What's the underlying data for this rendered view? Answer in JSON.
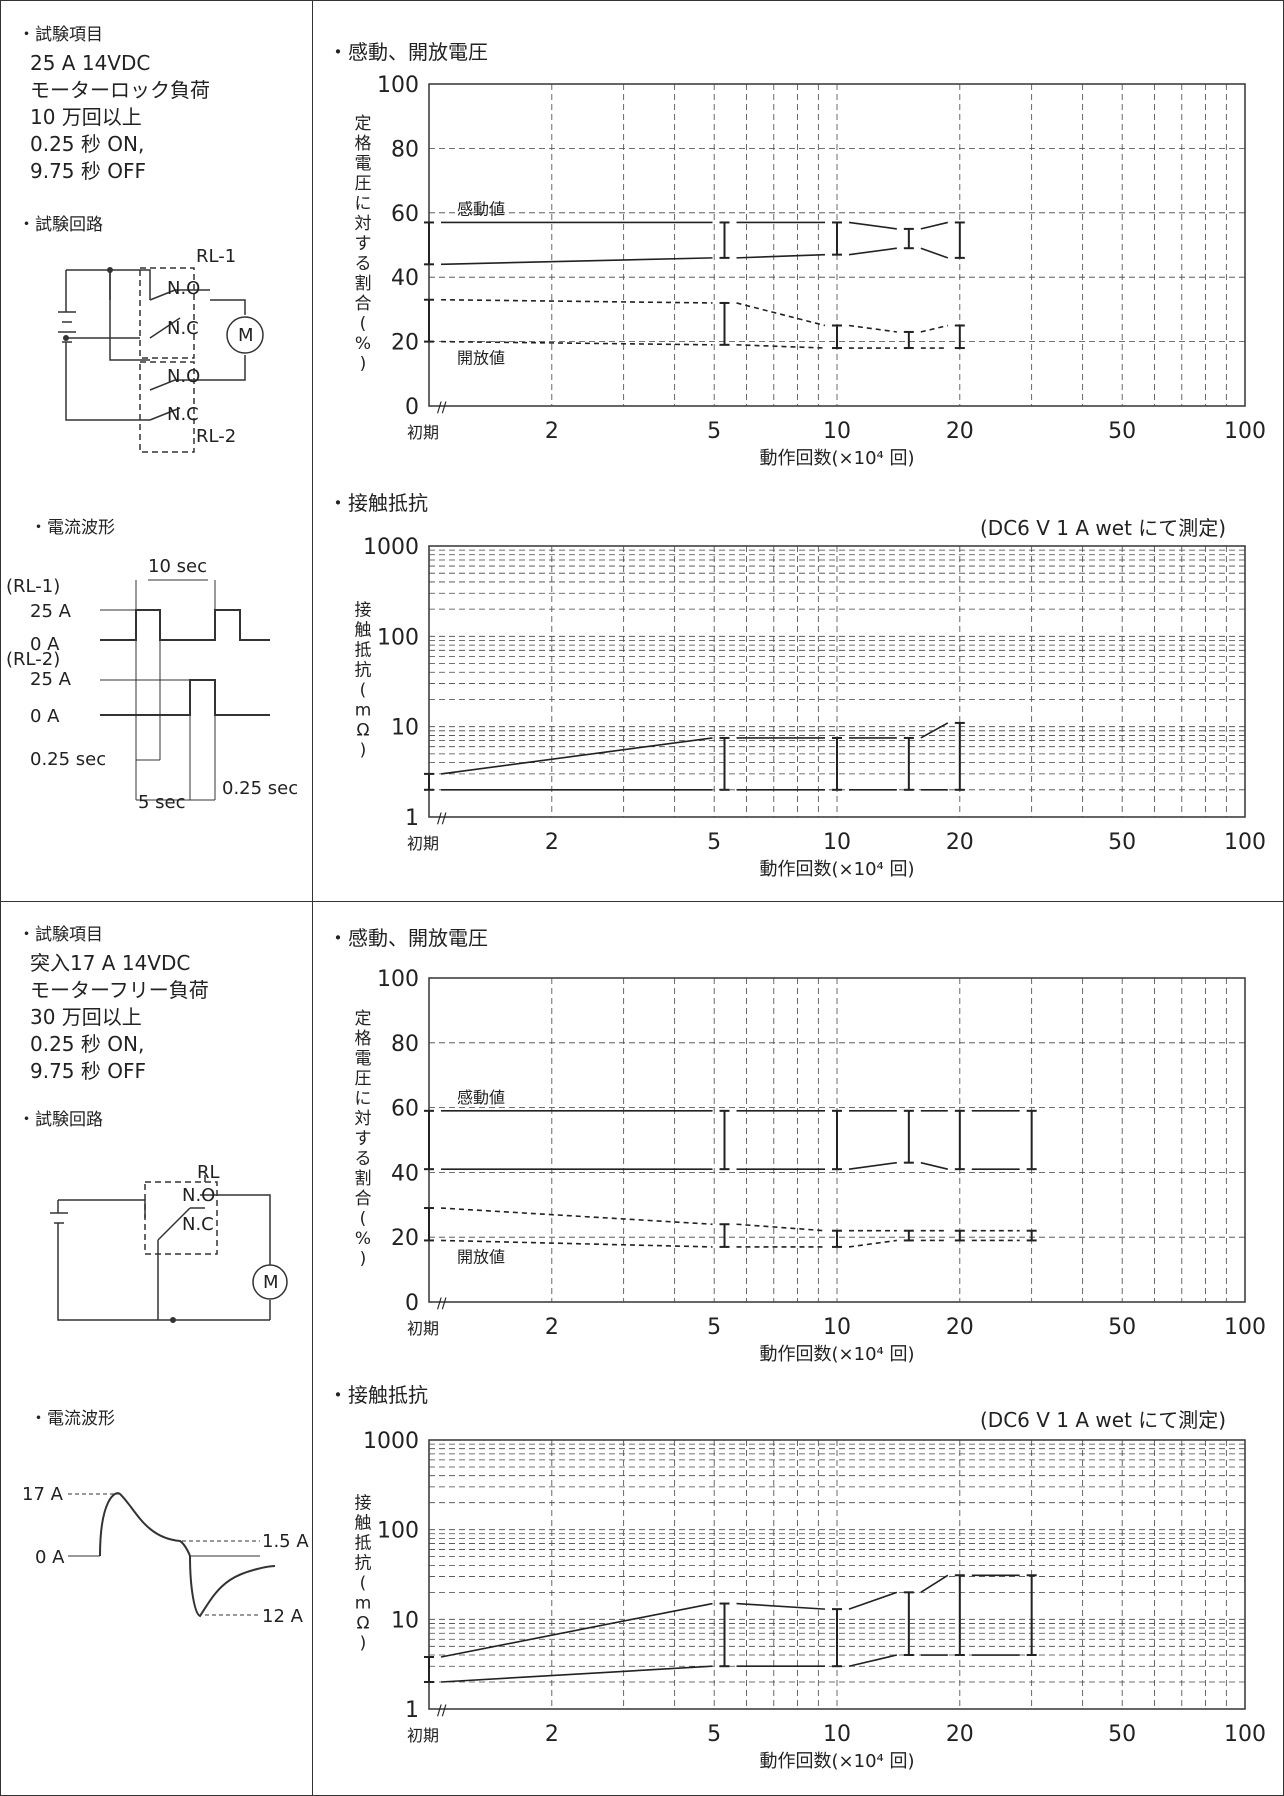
{
  "section1": {
    "test_item_label": "・試験項目",
    "spec_lines": [
      "25 A 14VDC",
      "モーターロック負荷",
      "10 万回以上",
      "0.25 秒 ON,",
      "9.75 秒 OFF"
    ],
    "circuit_label": "・試験回路",
    "circuit_labels": {
      "rl1": "RL-1",
      "no1": "N.O",
      "nc1": "N.C",
      "no2": "N.O",
      "nc2": "N.C",
      "rl2": "RL-2",
      "motor": "M"
    },
    "waveform_label": "・電流波形",
    "waveform": {
      "period": "10 sec",
      "rl1": "(RL-1)",
      "a25_1": "25 A",
      "a0_1": "0 A",
      "rl2": "(RL-2)",
      "a25_2": "25 A",
      "a0_2": "0 A",
      "t1": "0.25 sec",
      "t2": "5 sec",
      "t3": "0.25 sec"
    }
  },
  "section2": {
    "test_item_label": "・試験項目",
    "spec_lines": [
      "突入17 A 14VDC",
      "モーターフリー負荷",
      "30 万回以上",
      "0.25 秒 ON,",
      "9.75 秒 OFF"
    ],
    "circuit_label": "・試験回路",
    "circuit_labels": {
      "rl": "RL",
      "no": "N.O",
      "nc": "N.C",
      "motor": "M"
    },
    "waveform_label": "・電流波形",
    "waveform": {
      "peak": "17 A",
      "zero": "0 A",
      "mid": "1.5 A",
      "neg": "12 A"
    }
  },
  "chart_data": [
    {
      "type": "line",
      "title": "・感動、開放電圧",
      "ylabel": "定格電圧に対する割合(%)",
      "xlabel": "動作回数(×10⁴ 回)",
      "x_scale": "log",
      "x_ticks": [
        "初期",
        "2",
        "5",
        "10",
        "20",
        "50",
        "100"
      ],
      "ylim": [
        0,
        100
      ],
      "y_ticks": [
        0,
        20,
        40,
        60,
        80,
        100
      ],
      "annotations": [
        "感動値",
        "開放値"
      ],
      "x": [
        1,
        5.3,
        10,
        15,
        20
      ],
      "series": [
        {
          "name": "感動値",
          "min": [
            44,
            46,
            47,
            49,
            46
          ],
          "max": [
            57,
            57,
            57,
            55,
            57
          ]
        },
        {
          "name": "開放値",
          "min": [
            20,
            19,
            18,
            18,
            18
          ],
          "max": [
            33,
            32,
            25,
            23,
            25
          ]
        }
      ]
    },
    {
      "type": "line",
      "title": "・接触抵抗",
      "note": "(DC6 V 1 A wet にて測定)",
      "ylabel": "接触抵抗(mΩ)",
      "xlabel": "動作回数(×10⁴ 回)",
      "x_scale": "log",
      "y_scale": "log",
      "x_ticks": [
        "初期",
        "2",
        "5",
        "10",
        "20",
        "50",
        "100"
      ],
      "ylim": [
        1,
        1000
      ],
      "y_ticks": [
        1,
        10,
        100,
        1000
      ],
      "x": [
        1,
        5.3,
        10,
        15,
        20
      ],
      "min": [
        2,
        2,
        2,
        2,
        2
      ],
      "max": [
        3,
        7.5,
        7.5,
        7.5,
        11
      ]
    },
    {
      "type": "line",
      "title": "・感動、開放電圧",
      "ylabel": "定格電圧に対する割合(%)",
      "xlabel": "動作回数(×10⁴ 回)",
      "x_scale": "log",
      "x_ticks": [
        "初期",
        "2",
        "5",
        "10",
        "20",
        "50",
        "100"
      ],
      "ylim": [
        0,
        100
      ],
      "y_ticks": [
        0,
        20,
        40,
        60,
        80,
        100
      ],
      "annotations": [
        "感動値",
        "開放値"
      ],
      "x": [
        1,
        5.3,
        10,
        15,
        20,
        30
      ],
      "series": [
        {
          "name": "感動値",
          "min": [
            41,
            41,
            41,
            43,
            41,
            41
          ],
          "max": [
            59,
            59,
            59,
            59,
            59,
            59
          ]
        },
        {
          "name": "開放値",
          "min": [
            19,
            17,
            17,
            19,
            19,
            19
          ],
          "max": [
            29,
            24,
            22,
            22,
            22,
            22
          ]
        }
      ]
    },
    {
      "type": "line",
      "title": "・接触抵抗",
      "note": "(DC6 V 1 A wet にて測定)",
      "ylabel": "接触抵抗(mΩ)",
      "xlabel": "動作回数(×10⁴ 回)",
      "x_scale": "log",
      "y_scale": "log",
      "x_ticks": [
        "初期",
        "2",
        "5",
        "10",
        "20",
        "50",
        "100"
      ],
      "ylim": [
        1,
        1000
      ],
      "y_ticks": [
        1,
        10,
        100,
        1000
      ],
      "x": [
        1,
        5.3,
        10,
        15,
        20,
        30
      ],
      "min": [
        2,
        3,
        3,
        4,
        4,
        4
      ],
      "max": [
        3.8,
        15,
        13,
        20,
        31,
        31
      ]
    }
  ]
}
